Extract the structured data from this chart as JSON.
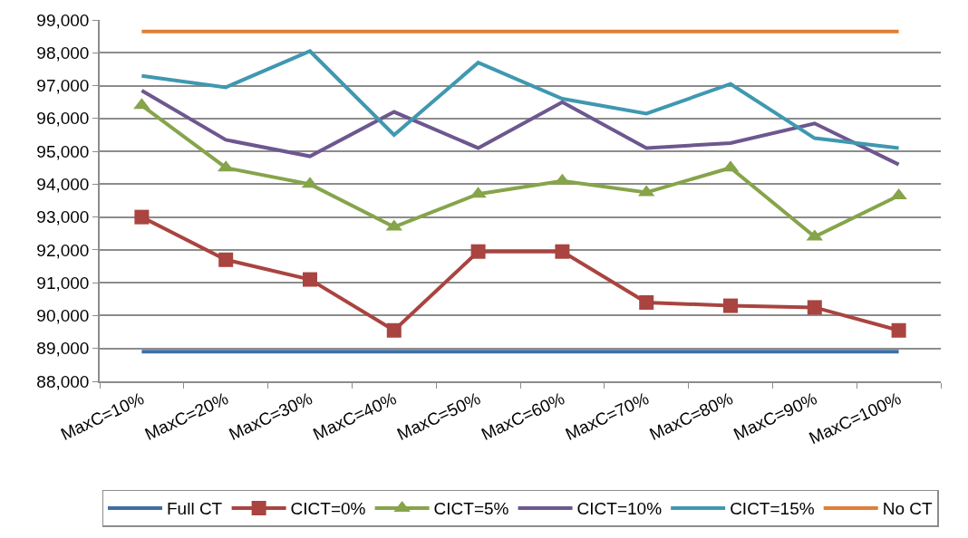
{
  "chart_data": {
    "type": "line",
    "categories": [
      "MaxC=10%",
      "MaxC=20%",
      "MaxC=30%",
      "MaxC=40%",
      "MaxC=50%",
      "MaxC=60%",
      "MaxC=70%",
      "MaxC=80%",
      "MaxC=90%",
      "MaxC=100%"
    ],
    "series": [
      {
        "name": "Full CT",
        "color": "#3f6ea5",
        "marker": "none",
        "values": [
          88900,
          88900,
          88900,
          88900,
          88900,
          88900,
          88900,
          88900,
          88900,
          88900
        ]
      },
      {
        "name": "CICT=0%",
        "color": "#a94440",
        "marker": "square",
        "values": [
          93000,
          91700,
          91100,
          89550,
          91950,
          91950,
          90400,
          90300,
          90250,
          89550
        ]
      },
      {
        "name": "CICT=5%",
        "color": "#86a44a",
        "marker": "triangle",
        "values": [
          96400,
          94500,
          94000,
          92700,
          93700,
          94100,
          93750,
          94500,
          92400,
          93650
        ]
      },
      {
        "name": "CICT=10%",
        "color": "#6d578f",
        "marker": "none",
        "values": [
          96850,
          95350,
          94850,
          96200,
          95100,
          96500,
          95100,
          95250,
          95850,
          94600
        ]
      },
      {
        "name": "CICT=15%",
        "color": "#3f98b0",
        "marker": "none",
        "values": [
          97300,
          96950,
          98050,
          95500,
          97700,
          96600,
          96150,
          97050,
          95400,
          95100
        ]
      },
      {
        "name": "No CT",
        "color": "#df7f35",
        "marker": "none",
        "values": [
          98650,
          98650,
          98650,
          98650,
          98650,
          98650,
          98650,
          98650,
          98650,
          98650
        ]
      }
    ],
    "ylim": [
      88000,
      99000
    ],
    "yticks": [
      {
        "value": 88000,
        "label": "88,000"
      },
      {
        "value": 89000,
        "label": "89,000"
      },
      {
        "value": 90000,
        "label": "90,000"
      },
      {
        "value": 91000,
        "label": "91,000"
      },
      {
        "value": 92000,
        "label": "92,000"
      },
      {
        "value": 93000,
        "label": "93,000"
      },
      {
        "value": 94000,
        "label": "94,000"
      },
      {
        "value": 95000,
        "label": "95,000"
      },
      {
        "value": 96000,
        "label": "96,000"
      },
      {
        "value": 97000,
        "label": "97,000"
      },
      {
        "value": 98000,
        "label": "98,000"
      },
      {
        "value": 99000,
        "label": "99,000"
      }
    ],
    "grid": "y",
    "legend": "bottom",
    "line_style": "solid"
  }
}
